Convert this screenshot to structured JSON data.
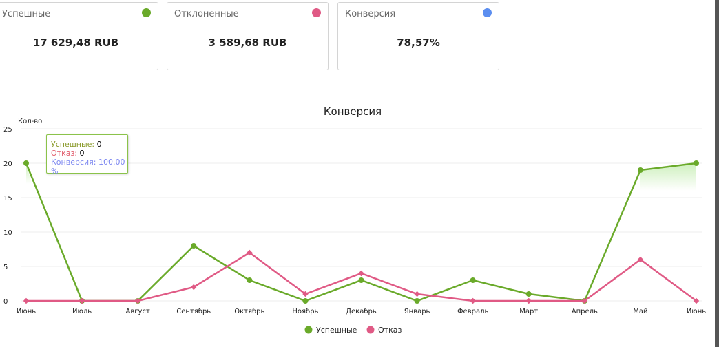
{
  "cards": [
    {
      "title": "Успешные",
      "value": "17 629,48 RUB",
      "color": "#6aaa2a"
    },
    {
      "title": "Отклоненные",
      "value": "3 589,68 RUB",
      "color": "#e05a85"
    },
    {
      "title": "Конверсия",
      "value": "78,57%",
      "color": "#5b8ef0"
    }
  ],
  "tooltip": {
    "s_label": "Успешные:",
    "s_val": "0",
    "o_label": "Отказ:",
    "o_val": "0",
    "c_label": "Конверсия:",
    "c_val": "100.00 %"
  },
  "chart_data": {
    "type": "line",
    "title": "Конверсия",
    "ylabel": "Кол-во",
    "ylim": [
      0,
      25
    ],
    "yticks": [
      0,
      5,
      10,
      15,
      20,
      25
    ],
    "categories": [
      "Июнь",
      "Июль",
      "Август",
      "Сентябрь",
      "Октябрь",
      "Ноябрь",
      "Декабрь",
      "Январь",
      "Февраль",
      "Март",
      "Апрель",
      "Май",
      "Июнь"
    ],
    "series": [
      {
        "name": "Успешные",
        "color": "#6aaa2a",
        "values": [
          20,
          0,
          0,
          8,
          3,
          0,
          3,
          0,
          3,
          1,
          0,
          19,
          20
        ]
      },
      {
        "name": "Отказ",
        "color": "#e05a85",
        "values": [
          0,
          0,
          0,
          2,
          7,
          1,
          4,
          1,
          0,
          0,
          0,
          6,
          0
        ]
      }
    ],
    "legend": "bottom"
  }
}
